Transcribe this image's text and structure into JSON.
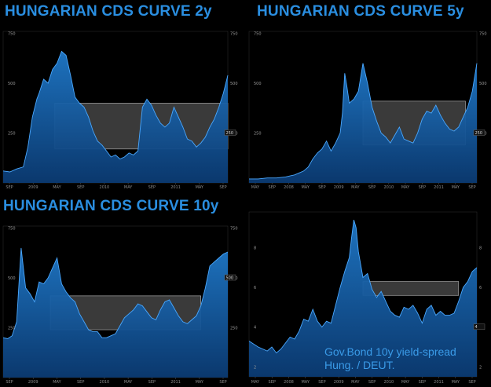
{
  "chart_data": [
    {
      "type": "area",
      "title": "HUNGARIAN CDS CURVE 2y",
      "x_tick_labels": [
        "SEP",
        "2009",
        "MAY",
        "SEP",
        "2010",
        "MAY",
        "SEP",
        "2011",
        "MAY",
        "SEP"
      ],
      "ylim": [
        0,
        760
      ],
      "y_tick_labels": [
        "750",
        "500",
        "250"
      ],
      "y_tick_values": [
        750,
        500,
        250
      ],
      "last_value_box": "250",
      "series": [
        {
          "x": [
            0,
            3,
            6,
            9,
            11,
            13,
            15,
            16,
            18,
            20,
            22,
            24,
            26,
            28,
            30,
            32,
            34,
            36,
            38,
            40,
            42,
            44,
            46,
            48,
            50,
            52,
            54,
            56,
            58,
            60,
            62,
            64,
            66,
            68,
            70,
            72,
            74,
            76,
            78,
            80,
            82,
            84,
            86,
            88,
            90,
            92,
            94,
            96,
            98,
            100
          ],
          "values": [
            60,
            55,
            70,
            80,
            180,
            330,
            420,
            450,
            520,
            500,
            570,
            600,
            660,
            640,
            540,
            430,
            400,
            380,
            330,
            260,
            210,
            190,
            160,
            130,
            140,
            120,
            130,
            150,
            140,
            160,
            380,
            420,
            390,
            340,
            300,
            280,
            300,
            380,
            330,
            280,
            220,
            210,
            180,
            200,
            230,
            280,
            320,
            380,
            450,
            540
          ]
        }
      ],
      "shaded_region": {
        "x": [
          23,
          100
        ],
        "y": [
          170,
          400
        ]
      }
    },
    {
      "type": "area",
      "title": "HUNGARIAN CDS CURVE 5y",
      "x_tick_labels": [
        "MAY",
        "SEP",
        "2008",
        "MAY",
        "SEP",
        "2009",
        "MAY",
        "SEP",
        "2010",
        "MAY",
        "SEP",
        "2011",
        "MAY",
        "SEP"
      ],
      "ylim": [
        0,
        760
      ],
      "y_tick_labels": [
        "750",
        "500",
        "250"
      ],
      "y_tick_values": [
        750,
        500,
        250
      ],
      "last_value_box": "250",
      "series": [
        {
          "x": [
            0,
            4,
            8,
            12,
            16,
            18,
            20,
            22,
            24,
            26,
            28,
            30,
            32,
            34,
            36,
            38,
            40,
            41,
            42,
            43,
            44,
            46,
            48,
            50,
            52,
            54,
            56,
            58,
            60,
            62,
            64,
            66,
            68,
            70,
            72,
            74,
            76,
            78,
            80,
            82,
            84,
            86,
            88,
            90,
            92,
            94,
            96,
            98,
            100
          ],
          "values": [
            20,
            20,
            25,
            25,
            30,
            35,
            40,
            50,
            60,
            80,
            120,
            150,
            170,
            210,
            160,
            200,
            250,
            350,
            550,
            480,
            400,
            420,
            460,
            600,
            500,
            380,
            310,
            250,
            230,
            200,
            240,
            280,
            220,
            210,
            200,
            250,
            320,
            360,
            350,
            390,
            340,
            300,
            270,
            260,
            280,
            330,
            380,
            460,
            600
          ]
        }
      ],
      "shaded_region": {
        "x": [
          50,
          95
        ],
        "y": [
          190,
          410
        ]
      }
    },
    {
      "type": "area",
      "title": "HUNGARIAN CDS CURVE 10y",
      "x_tick_labels": [
        "SEP",
        "2009",
        "MAY",
        "SEP",
        "2010",
        "MAY",
        "SEP",
        "2011",
        "MAY",
        "SEP"
      ],
      "ylim": [
        0,
        760
      ],
      "y_tick_labels": [
        "750",
        "500",
        "250"
      ],
      "y_tick_values": [
        750,
        500,
        250
      ],
      "last_value_box": "500",
      "series": [
        {
          "x": [
            0,
            2,
            4,
            6,
            8,
            10,
            12,
            14,
            16,
            18,
            20,
            22,
            24,
            26,
            28,
            30,
            32,
            34,
            36,
            38,
            40,
            42,
            44,
            46,
            48,
            50,
            52,
            54,
            56,
            58,
            60,
            62,
            64,
            66,
            68,
            70,
            72,
            74,
            76,
            78,
            80,
            82,
            84,
            86,
            88,
            90,
            92,
            94,
            96,
            98,
            100
          ],
          "values": [
            200,
            195,
            210,
            280,
            650,
            450,
            420,
            380,
            480,
            470,
            500,
            550,
            600,
            470,
            430,
            400,
            380,
            320,
            280,
            240,
            230,
            230,
            200,
            200,
            210,
            220,
            260,
            300,
            320,
            340,
            370,
            360,
            330,
            300,
            290,
            340,
            380,
            390,
            350,
            310,
            280,
            270,
            290,
            310,
            360,
            450,
            560,
            580,
            600,
            620,
            630
          ]
        }
      ],
      "shaded_region": {
        "x": [
          21,
          88
        ],
        "y": [
          240,
          410
        ]
      }
    },
    {
      "type": "area",
      "title": "",
      "x_tick_labels": [
        "MAY",
        "SEP",
        "2008",
        "MAY",
        "SEP",
        "2009",
        "MAY",
        "SEP",
        "2010",
        "MAY",
        "SEP",
        "2011",
        "MAY",
        "SEP"
      ],
      "ylim": [
        1.5,
        9.8
      ],
      "y_tick_labels": [
        "8",
        "6",
        "4",
        "2"
      ],
      "y_tick_values": [
        8,
        6,
        4,
        2
      ],
      "last_value_box": "4",
      "annotation": [
        "Gov.Bond 10y yield-spread",
        "Hung. / DEUT."
      ],
      "series": [
        {
          "x": [
            0,
            4,
            8,
            10,
            12,
            14,
            16,
            18,
            20,
            22,
            24,
            26,
            28,
            30,
            32,
            34,
            36,
            38,
            40,
            42,
            44,
            45,
            46,
            47,
            48,
            50,
            52,
            54,
            56,
            58,
            60,
            62,
            64,
            66,
            68,
            70,
            72,
            74,
            76,
            78,
            80,
            82,
            84,
            86,
            88,
            90,
            92,
            94,
            96,
            98,
            100
          ],
          "values": [
            3.3,
            3.0,
            2.8,
            3.0,
            2.7,
            2.9,
            3.2,
            3.5,
            3.4,
            3.8,
            4.4,
            4.3,
            4.9,
            4.3,
            4.0,
            4.3,
            4.2,
            5.1,
            6.0,
            6.8,
            7.5,
            8.5,
            9.4,
            9.0,
            7.8,
            6.5,
            6.7,
            5.9,
            5.5,
            5.8,
            5.3,
            4.8,
            4.6,
            4.5,
            5.0,
            4.9,
            5.1,
            4.7,
            4.2,
            4.9,
            5.1,
            4.6,
            4.8,
            4.6,
            4.6,
            4.7,
            5.3,
            6.0,
            6.3,
            6.8,
            7.0
          ]
        }
      ],
      "shaded_region": {
        "x": [
          50,
          92
        ],
        "y": [
          5.6,
          6.3
        ]
      }
    }
  ]
}
